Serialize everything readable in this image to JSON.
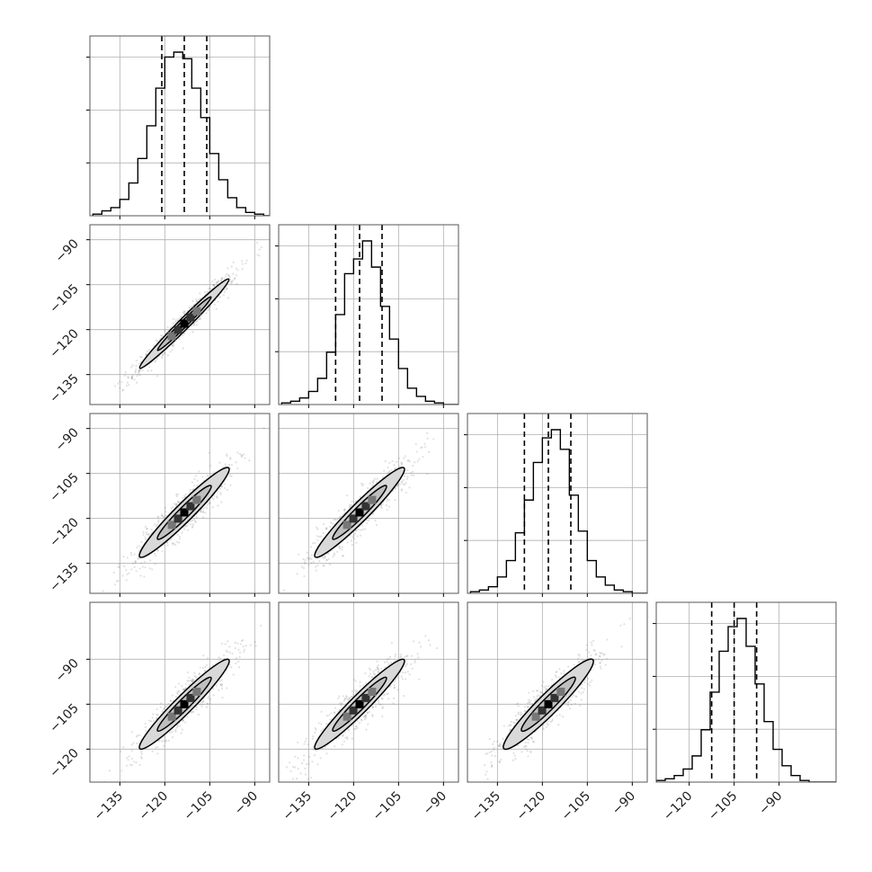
{
  "chart_data": {
    "type": "corner",
    "n_params": 4,
    "axes": [
      {
        "range": [
          -145,
          -85
        ],
        "ticks": [
          -135,
          -120,
          -105,
          -90
        ]
      },
      {
        "range": [
          -145,
          -85
        ],
        "ticks": [
          -135,
          -120,
          -105,
          -90
        ]
      },
      {
        "range": [
          -145,
          -85
        ],
        "ticks": [
          -135,
          -120,
          -105,
          -90
        ]
      },
      {
        "range": [
          -131,
          -71
        ],
        "ticks": [
          -120,
          -105,
          -90
        ]
      }
    ],
    "quantiles": [
      [
        -121,
        -113.5,
        -106
      ],
      [
        -126,
        -118,
        -110.5
      ],
      [
        -126,
        -118,
        -110.5
      ],
      [
        -112.5,
        -105,
        -97.5
      ]
    ],
    "histograms": [
      {
        "bin_edges": [
          -144,
          -141,
          -138,
          -135,
          -132,
          -129,
          -126,
          -123,
          -120,
          -117,
          -114,
          -111,
          -108,
          -105,
          -102,
          -99,
          -96,
          -93,
          -90,
          -87,
          -84
        ],
        "counts": [
          0.01,
          0.03,
          0.05,
          0.1,
          0.2,
          0.35,
          0.55,
          0.78,
          0.97,
          1.0,
          0.96,
          0.78,
          0.6,
          0.38,
          0.22,
          0.11,
          0.05,
          0.02,
          0.01,
          0.0
        ]
      },
      {
        "bin_edges": [
          -144,
          -141,
          -138,
          -135,
          -132,
          -129,
          -126,
          -123,
          -120,
          -117,
          -114,
          -111,
          -108,
          -105,
          -102,
          -99,
          -96,
          -93,
          -90,
          -87,
          -84
        ],
        "counts": [
          0.01,
          0.02,
          0.04,
          0.08,
          0.16,
          0.32,
          0.55,
          0.8,
          0.89,
          1.0,
          0.84,
          0.6,
          0.4,
          0.22,
          0.1,
          0.05,
          0.02,
          0.01,
          0.0,
          0.0
        ]
      },
      {
        "bin_edges": [
          -144,
          -141,
          -138,
          -135,
          -132,
          -129,
          -126,
          -123,
          -120,
          -117,
          -114,
          -111,
          -108,
          -105,
          -102,
          -99,
          -96,
          -93,
          -90,
          -87,
          -84
        ],
        "counts": [
          0.01,
          0.02,
          0.04,
          0.1,
          0.2,
          0.37,
          0.57,
          0.8,
          0.95,
          1.0,
          0.88,
          0.6,
          0.38,
          0.2,
          0.1,
          0.05,
          0.02,
          0.01,
          0.0,
          0.0
        ]
      },
      {
        "bin_edges": [
          -131,
          -128,
          -125,
          -122,
          -119,
          -116,
          -113,
          -110,
          -107,
          -104,
          -101,
          -98,
          -95,
          -92,
          -89,
          -86,
          -83,
          -80,
          -77,
          -74,
          -71
        ],
        "counts": [
          0.01,
          0.02,
          0.04,
          0.08,
          0.16,
          0.32,
          0.55,
          0.8,
          0.95,
          1.0,
          0.83,
          0.6,
          0.37,
          0.2,
          0.1,
          0.04,
          0.01,
          0.0,
          0.0,
          0.0
        ]
      }
    ],
    "pair_plots": [
      {
        "row": 1,
        "col": 0,
        "mean": [
          -113.5,
          -118
        ],
        "major_sd": 10.5,
        "minor_sd": 0.9,
        "slope": 1.0
      },
      {
        "row": 2,
        "col": 0,
        "mean": [
          -113.5,
          -118
        ],
        "major_sd": 10.5,
        "minor_sd": 1.5,
        "slope": 1.0
      },
      {
        "row": 2,
        "col": 1,
        "mean": [
          -118,
          -118
        ],
        "major_sd": 10.5,
        "minor_sd": 1.5,
        "slope": 1.0
      },
      {
        "row": 3,
        "col": 0,
        "mean": [
          -113.5,
          -105
        ],
        "major_sd": 10.5,
        "minor_sd": 1.5,
        "slope": 1.0
      },
      {
        "row": 3,
        "col": 1,
        "mean": [
          -118,
          -105
        ],
        "major_sd": 10.5,
        "minor_sd": 1.5,
        "slope": 1.0
      },
      {
        "row": 3,
        "col": 2,
        "mean": [
          -118,
          -105
        ],
        "major_sd": 10.5,
        "minor_sd": 1.7,
        "slope": 1.0
      }
    ],
    "grid": true,
    "quantile_line_style": "dashed",
    "colors": {
      "line": "#000000",
      "grid": "#b0b0b0",
      "scatter": "#888888",
      "fill_outer": "#d9d9d9",
      "fill_inner": "#bfbfbf"
    }
  }
}
